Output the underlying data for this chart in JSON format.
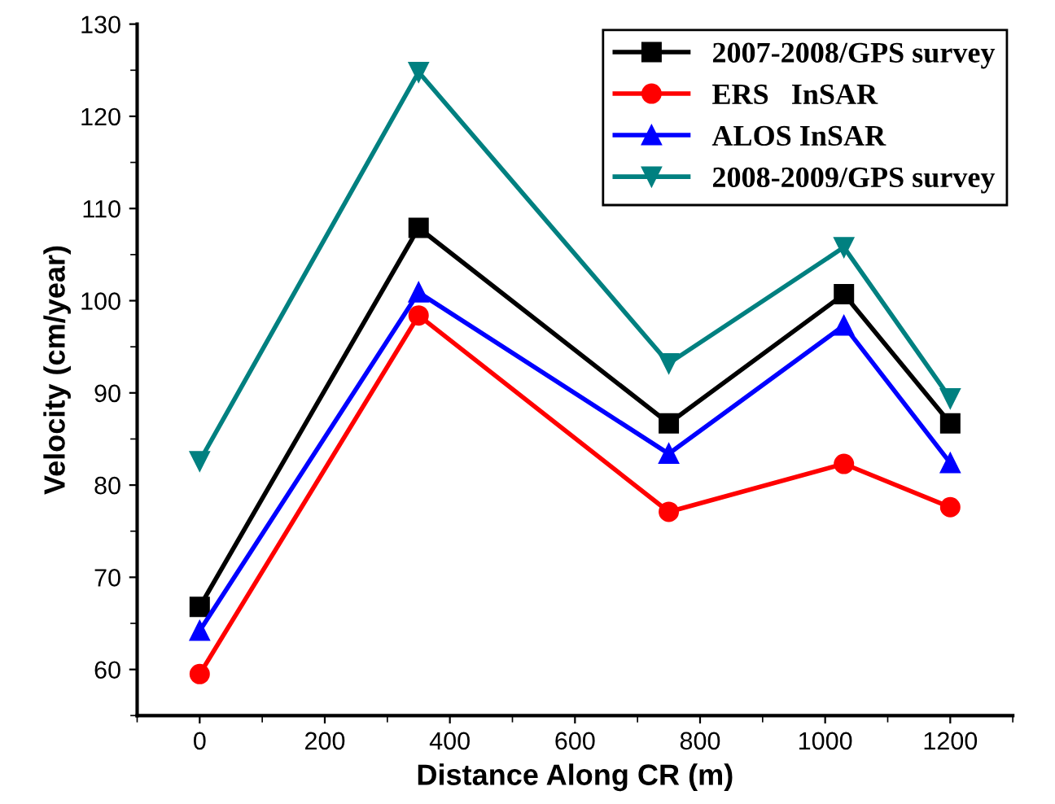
{
  "chart_data": {
    "type": "line",
    "xlabel": "Distance Along CR (m)",
    "ylabel": "Velocity (cm/year)",
    "x": [
      0,
      350,
      750,
      1030,
      1200
    ],
    "series": [
      {
        "name": "2007-2008/GPS survey",
        "color": "#000000",
        "marker": "square",
        "values": [
          66.8,
          107.9,
          86.7,
          100.7,
          86.7
        ]
      },
      {
        "name": "ERS   InSAR",
        "color": "#ff0000",
        "marker": "circle",
        "values": [
          59.5,
          98.4,
          77.1,
          82.3,
          77.6
        ]
      },
      {
        "name": "ALOS InSAR",
        "color": "#0000ff",
        "marker": "triangle",
        "values": [
          64.2,
          100.9,
          83.4,
          97.3,
          82.4
        ]
      },
      {
        "name": "2008-2009/GPS survey",
        "color": "#008080",
        "marker": "triangle_down",
        "values": [
          82.6,
          124.8,
          93.2,
          105.8,
          89.4
        ]
      }
    ],
    "xlim": [
      -100,
      1300
    ],
    "xticks": [
      0,
      200,
      400,
      600,
      800,
      1000,
      1200
    ],
    "ylim": [
      55,
      130
    ],
    "yticks": [
      60,
      70,
      80,
      90,
      100,
      110,
      120,
      130
    ],
    "grid": false,
    "legend": "top right",
    "line_style": "solid"
  }
}
